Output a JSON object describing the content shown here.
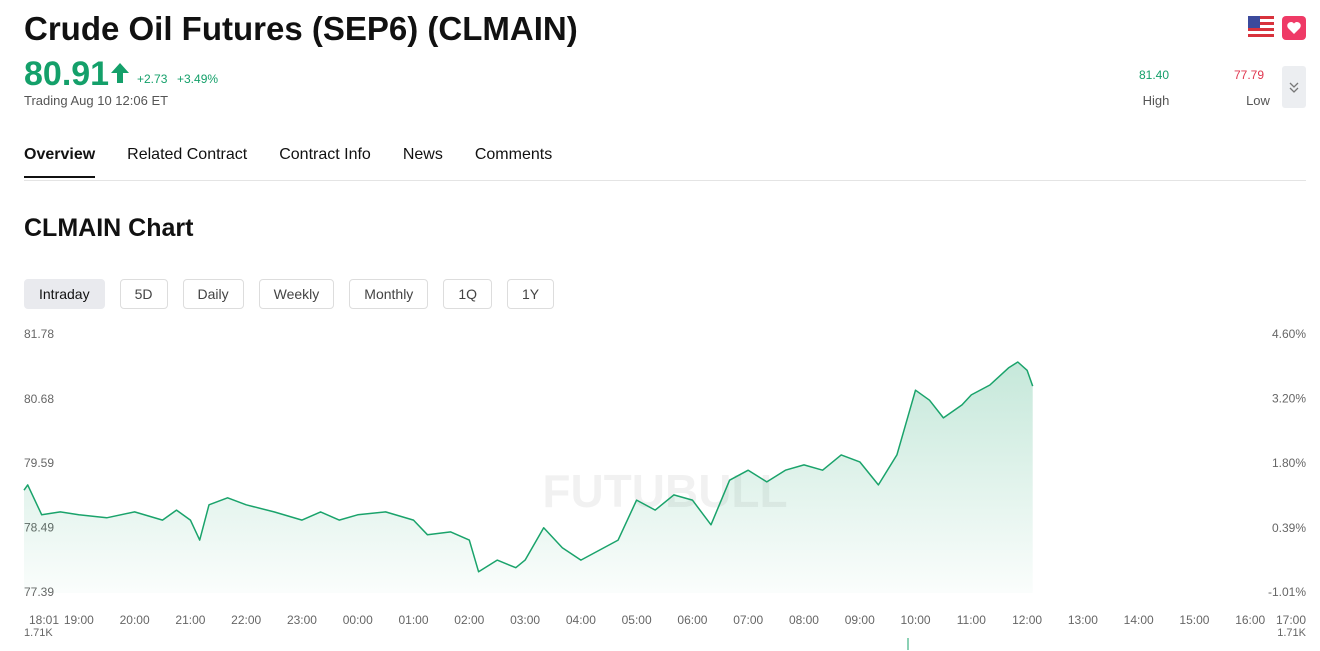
{
  "header": {
    "title": "Crude Oil Futures (SEP6) (CLMAIN)",
    "price": "80.91",
    "change": "+2.73",
    "change_pct": "+3.49%",
    "status": "Trading Aug 10 12:06 ET",
    "high": "81.40",
    "high_label": "High",
    "low": "77.79",
    "low_label": "Low"
  },
  "tabs": [
    "Overview",
    "Related Contract",
    "Contract Info",
    "News",
    "Comments"
  ],
  "section_title": "CLMAIN Chart",
  "ranges": [
    "Intraday",
    "5D",
    "Daily",
    "Weekly",
    "Monthly",
    "1Q",
    "1Y"
  ],
  "chart_data": {
    "type": "line",
    "color": "#1aa36b",
    "watermark": "FUTUBULL",
    "x": [
      "18:01",
      "18:05",
      "18:20",
      "18:40",
      "19:00",
      "19:30",
      "20:00",
      "20:30",
      "20:45",
      "21:00",
      "21:10",
      "21:20",
      "21:40",
      "22:00",
      "22:30",
      "23:00",
      "23:20",
      "23:40",
      "00:00",
      "00:30",
      "01:00",
      "01:15",
      "01:40",
      "02:00",
      "02:10",
      "02:30",
      "02:50",
      "03:00",
      "03:20",
      "03:40",
      "04:00",
      "04:20",
      "04:40",
      "05:00",
      "05:20",
      "05:40",
      "06:00",
      "06:20",
      "06:40",
      "07:00",
      "07:20",
      "07:40",
      "08:00",
      "08:20",
      "08:40",
      "09:00",
      "09:20",
      "09:40",
      "10:00",
      "10:15",
      "10:30",
      "10:50",
      "11:00",
      "11:20",
      "11:40",
      "11:50",
      "12:00",
      "12:06"
    ],
    "values": [
      79.14,
      79.23,
      78.72,
      78.77,
      78.72,
      78.67,
      78.77,
      78.63,
      78.8,
      78.63,
      78.29,
      78.89,
      79.01,
      78.89,
      78.77,
      78.63,
      78.77,
      78.63,
      78.72,
      78.77,
      78.63,
      78.38,
      78.43,
      78.29,
      77.75,
      77.95,
      77.82,
      77.95,
      78.5,
      78.16,
      77.95,
      78.12,
      78.29,
      78.97,
      78.8,
      79.06,
      78.97,
      78.55,
      79.31,
      79.48,
      79.28,
      79.48,
      79.57,
      79.48,
      79.74,
      79.62,
      79.23,
      79.74,
      80.84,
      80.67,
      80.37,
      80.59,
      80.76,
      80.93,
      81.22,
      81.32,
      81.18,
      80.91
    ],
    "xlim": [
      "18:01",
      "17:00"
    ],
    "xticks": [
      "18:01",
      "19:00",
      "20:00",
      "21:00",
      "22:00",
      "23:00",
      "00:00",
      "01:00",
      "02:00",
      "03:00",
      "04:00",
      "05:00",
      "06:00",
      "07:00",
      "08:00",
      "09:00",
      "10:00",
      "11:00",
      "12:00",
      "13:00",
      "14:00",
      "15:00",
      "16:00",
      "17:00"
    ],
    "ylim": [
      77.39,
      81.78
    ],
    "yticks": [
      77.39,
      78.49,
      79.59,
      80.68,
      81.78
    ],
    "y2lim": [
      -1.01,
      4.6
    ],
    "y2ticks": [
      {
        "value": -1.01,
        "label": "-1.01%"
      },
      {
        "value": 0.39,
        "label": "0.39%"
      },
      {
        "value": 1.8,
        "label": "1.80%"
      },
      {
        "value": 3.2,
        "label": "3.20%"
      },
      {
        "value": 4.6,
        "label": "4.60%"
      }
    ],
    "volume_labels": [
      "1.71K",
      "1.71K"
    ]
  }
}
